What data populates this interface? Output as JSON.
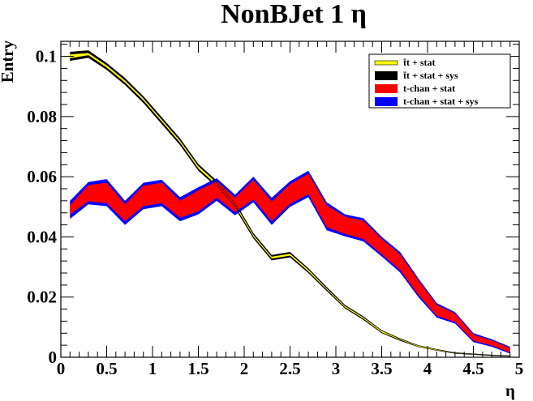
{
  "chart_data": {
    "type": "area",
    "title": "NonBJet 1 η",
    "xlabel": "η",
    "ylabel": "Entry",
    "xlim": [
      0,
      5
    ],
    "ylim": [
      0,
      0.105
    ],
    "x_ticks": [
      0,
      0.5,
      1,
      1.5,
      2,
      2.5,
      3,
      3.5,
      4,
      4.5,
      5
    ],
    "x_tick_labels": [
      "0",
      "0.5",
      "1",
      "1.5",
      "2",
      "2.5",
      "3",
      "3.5",
      "4",
      "4.5",
      "5"
    ],
    "y_ticks": [
      0,
      0.02,
      0.04,
      0.06,
      0.08,
      0.1
    ],
    "y_tick_labels": [
      "0",
      "0.02",
      "0.04",
      "0.06",
      "0.08",
      "0.1"
    ],
    "grid": false,
    "legend_position": "top-right",
    "x": [
      0.1,
      0.3,
      0.5,
      0.7,
      0.9,
      1.1,
      1.3,
      1.5,
      1.7,
      1.9,
      2.1,
      2.3,
      2.5,
      2.7,
      2.9,
      3.1,
      3.3,
      3.5,
      3.7,
      3.9,
      4.1,
      4.3,
      4.5,
      4.7,
      4.9
    ],
    "series": [
      {
        "name": "t̄t + stat + sys",
        "color": "#000000",
        "low": [
          0.0985,
          0.0995,
          0.0955,
          0.0905,
          0.0845,
          0.0775,
          0.0705,
          0.062,
          0.0565,
          0.0495,
          0.0395,
          0.0322,
          0.0332,
          0.028,
          0.022,
          0.0162,
          0.0124,
          0.008,
          0.0055,
          0.0034,
          0.0022,
          0.0012,
          0.0009,
          0.0005,
          0.0003
        ],
        "high": [
          0.1015,
          0.102,
          0.0978,
          0.0928,
          0.0868,
          0.0798,
          0.0728,
          0.0642,
          0.0587,
          0.0517,
          0.0413,
          0.034,
          0.035,
          0.0296,
          0.0234,
          0.0174,
          0.0136,
          0.009,
          0.0063,
          0.004,
          0.0027,
          0.0016,
          0.0012,
          0.0008,
          0.0005
        ]
      },
      {
        "name": "t̄t + stat",
        "color": "#ffff00",
        "low": [
          0.0993,
          0.1003,
          0.0962,
          0.0912,
          0.0852,
          0.0782,
          0.0712,
          0.0626,
          0.0571,
          0.0501,
          0.04,
          0.0327,
          0.0337,
          0.0284,
          0.0224,
          0.0165,
          0.0127,
          0.0082,
          0.0057,
          0.0035,
          0.0023,
          0.0013,
          0.0009,
          0.0006,
          0.0003
        ],
        "high": [
          0.1007,
          0.1012,
          0.0971,
          0.0921,
          0.0861,
          0.0791,
          0.0721,
          0.0636,
          0.0581,
          0.0511,
          0.0408,
          0.0335,
          0.0345,
          0.0292,
          0.023,
          0.0171,
          0.0133,
          0.0088,
          0.0061,
          0.0039,
          0.0026,
          0.0015,
          0.0011,
          0.0007,
          0.0005
        ]
      },
      {
        "name": "t-chan + stat + sys",
        "color": "#0000ff",
        "low": [
          0.046,
          0.0508,
          0.0502,
          0.044,
          0.0492,
          0.0502,
          0.0452,
          0.0475,
          0.052,
          0.0472,
          0.0515,
          0.044,
          0.05,
          0.0532,
          0.0422,
          0.0402,
          0.0385,
          0.0335,
          0.0282,
          0.02,
          0.0132,
          0.0112,
          0.005,
          0.0035,
          0.0012
        ],
        "high": [
          0.052,
          0.0582,
          0.0592,
          0.052,
          0.058,
          0.059,
          0.0532,
          0.0565,
          0.0595,
          0.054,
          0.06,
          0.053,
          0.0585,
          0.062,
          0.0515,
          0.0475,
          0.0462,
          0.04,
          0.035,
          0.0262,
          0.018,
          0.015,
          0.008,
          0.006,
          0.0035
        ]
      },
      {
        "name": "t-chan + stat",
        "color": "#ff0000",
        "low": [
          0.0475,
          0.0518,
          0.0512,
          0.0452,
          0.0502,
          0.0512,
          0.0464,
          0.0485,
          0.053,
          0.0482,
          0.0525,
          0.0452,
          0.051,
          0.0542,
          0.0432,
          0.041,
          0.0393,
          0.0342,
          0.029,
          0.0207,
          0.0138,
          0.0117,
          0.0055,
          0.0039,
          0.0016
        ],
        "high": [
          0.0505,
          0.0572,
          0.058,
          0.0508,
          0.057,
          0.058,
          0.052,
          0.0555,
          0.0585,
          0.053,
          0.059,
          0.0518,
          0.0575,
          0.061,
          0.0505,
          0.0467,
          0.0454,
          0.0393,
          0.0342,
          0.0255,
          0.0174,
          0.0145,
          0.0075,
          0.0056,
          0.0031
        ]
      }
    ],
    "legend": [
      {
        "label": "t̄t + stat",
        "swatch": "line",
        "color": "#ffff00"
      },
      {
        "label": "t̄t + stat + sys",
        "swatch": "box",
        "color": "#000000"
      },
      {
        "label": "t-chan + stat",
        "swatch": "box",
        "color": "#ff0000"
      },
      {
        "label": "t-chan + stat + sys",
        "swatch": "box",
        "color": "#0000ff"
      }
    ]
  }
}
